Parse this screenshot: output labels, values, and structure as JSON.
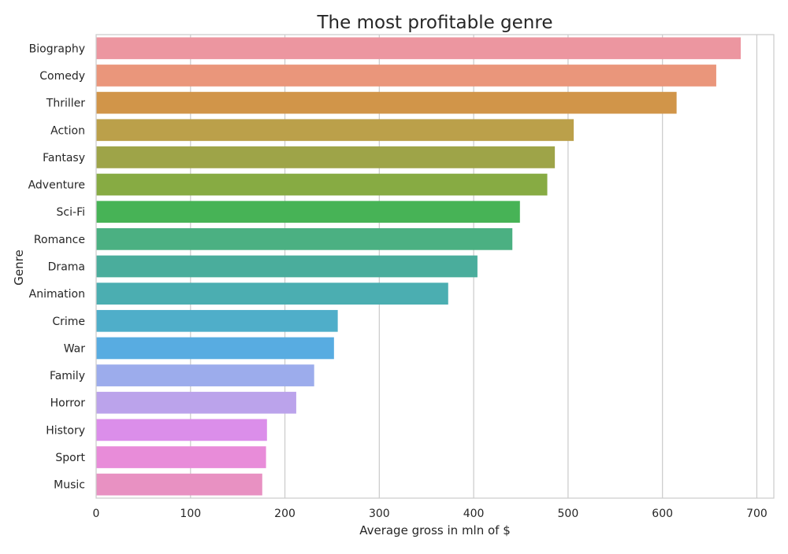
{
  "chart_data": {
    "type": "bar",
    "orientation": "horizontal",
    "title": "The most profitable genre",
    "xlabel": "Average gross in mln of $",
    "ylabel": "Genre",
    "xlim": [
      0,
      718
    ],
    "xticks": [
      0,
      100,
      200,
      300,
      400,
      500,
      600,
      700
    ],
    "grid": true,
    "categories": [
      "Biography",
      "Comedy",
      "Thriller",
      "Action",
      "Fantasy",
      "Adventure",
      "Sci-Fi",
      "Romance",
      "Drama",
      "Animation",
      "Crime",
      "War",
      "Family",
      "Horror",
      "History",
      "Sport",
      "Music"
    ],
    "values": [
      683,
      657,
      615,
      506,
      486,
      478,
      449,
      441,
      404,
      373,
      256,
      252,
      231,
      212,
      181,
      180,
      176
    ],
    "colors": [
      "#EC96A0",
      "#EA967B",
      "#D19549",
      "#BBA04A",
      "#9EA448",
      "#87AB43",
      "#47B356",
      "#4BB082",
      "#4AAD9C",
      "#4BAEB1",
      "#4FAEC9",
      "#58ACE1",
      "#9CACEC",
      "#BBA3EB",
      "#DB8EEA",
      "#E88CD9",
      "#E891C2"
    ]
  }
}
